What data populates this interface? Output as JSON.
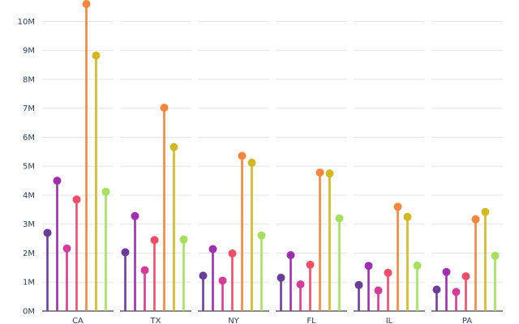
{
  "chart_data": {
    "type": "lollipop",
    "categories": [
      "CA",
      "TX",
      "NY",
      "FL",
      "IL",
      "PA"
    ],
    "series": [
      {
        "color": "#6a3d9a",
        "values": [
          2700000,
          2030000,
          1220000,
          1150000,
          900000,
          740000
        ]
      },
      {
        "color": "#9e2fb0",
        "values": [
          4500000,
          3280000,
          2140000,
          1930000,
          1560000,
          1350000
        ]
      },
      {
        "color": "#d63a9a",
        "values": [
          2160000,
          1410000,
          1050000,
          920000,
          710000,
          660000
        ]
      },
      {
        "color": "#ef4d67",
        "values": [
          3850000,
          2450000,
          1990000,
          1600000,
          1320000,
          1200000
        ]
      },
      {
        "color": "#f5863a",
        "values": [
          10600000,
          7020000,
          5360000,
          4780000,
          3600000,
          3170000
        ]
      },
      {
        "color": "#d4b81f",
        "values": [
          8820000,
          5660000,
          5120000,
          4750000,
          3250000,
          3420000
        ]
      },
      {
        "color": "#a5e25a",
        "values": [
          4120000,
          2470000,
          2610000,
          3200000,
          1570000,
          1910000
        ]
      }
    ],
    "ylim": [
      0,
      10600000
    ],
    "y_ticks": [
      {
        "value": 0,
        "label": "0M"
      },
      {
        "value": 1000000,
        "label": "1M"
      },
      {
        "value": 2000000,
        "label": "2M"
      },
      {
        "value": 3000000,
        "label": "3M"
      },
      {
        "value": 4000000,
        "label": "4M"
      },
      {
        "value": 5000000,
        "label": "5M"
      },
      {
        "value": 6000000,
        "label": "6M"
      },
      {
        "value": 7000000,
        "label": "7M"
      },
      {
        "value": 8000000,
        "label": "8M"
      },
      {
        "value": 9000000,
        "label": "9M"
      },
      {
        "value": 10000000,
        "label": "10M"
      }
    ],
    "grid": true,
    "legend": "none"
  }
}
